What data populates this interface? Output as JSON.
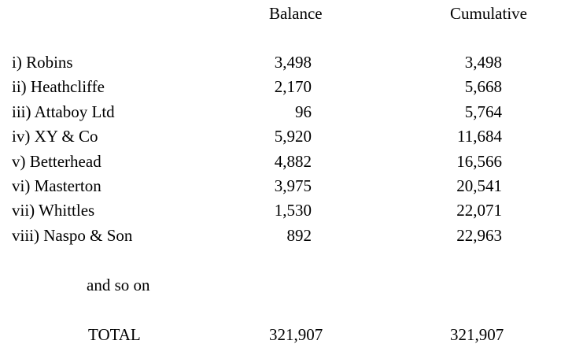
{
  "headers": {
    "balance": "Balance",
    "cumulative": "Cumulative"
  },
  "rows": [
    {
      "name": "i) Robins",
      "balance": "3,498",
      "cumulative": "3,498"
    },
    {
      "name": "ii) Heathcliffe",
      "balance": "2,170",
      "cumulative": "5,668"
    },
    {
      "name": "iii) Attaboy Ltd",
      "balance": "96",
      "cumulative": "5,764"
    },
    {
      "name": "iv) XY & Co",
      "balance": "5,920",
      "cumulative": "11,684"
    },
    {
      "name": "v) Betterhead",
      "balance": "4,882",
      "cumulative": "16,566"
    },
    {
      "name": "vi) Masterton",
      "balance": "3,975",
      "cumulative": "20,541"
    },
    {
      "name": "vii) Whittles",
      "balance": "1,530",
      "cumulative": "22,071"
    },
    {
      "name": "viii) Naspo & Son",
      "balance": "892",
      "cumulative": "22,963"
    }
  ],
  "continuation": "and so on",
  "total": {
    "label": "TOTAL",
    "balance": "321,907",
    "cumulative": "321,907"
  }
}
